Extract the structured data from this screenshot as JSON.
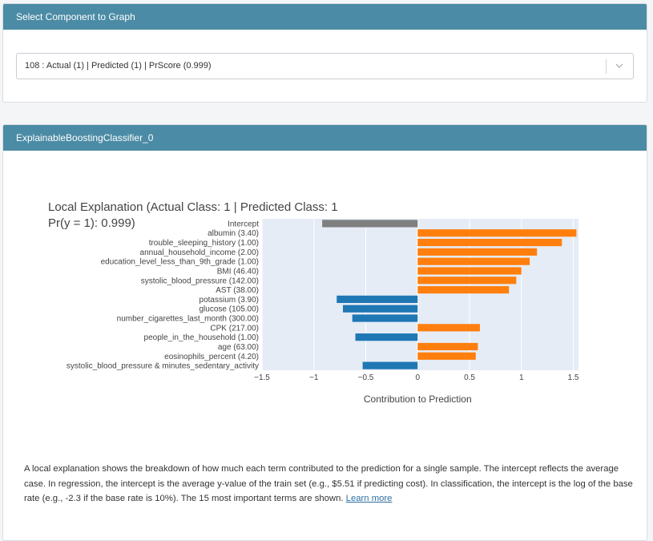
{
  "select_card": {
    "header": "Select Component to Graph",
    "selected_value": "108 : Actual (1) | Predicted (1) | PrScore (0.999)"
  },
  "explain_card": {
    "header": "ExplainableBoostingClassifier_0",
    "description": "A local explanation shows the breakdown of how much each term contributed to the prediction for a single sample. The intercept reflects the average case. In regression, the intercept is the average y-value of the train set (e.g., $5.51 if predicting cost). In classification, the intercept is the log of the base rate (e.g., -2.3 if the base rate is 10%). The 15 most important terms are shown.",
    "learn_more": "Learn more"
  },
  "chart_data": {
    "type": "bar",
    "orientation": "horizontal",
    "title_line1": "Local Explanation (Actual Class: 1 | Predicted Class: 1",
    "title_line2": "Pr(y = 1): 0.999)",
    "xlabel": "Contribution to Prediction",
    "ylabel": "",
    "xlim": [
      -1.5,
      1.55
    ],
    "xticks": [
      -1.5,
      -1,
      -0.5,
      0,
      0.5,
      1,
      1.5
    ],
    "xtick_labels": [
      "−1.5",
      "−1",
      "−0.5",
      "0",
      "0.5",
      "1",
      "1.5"
    ],
    "grid": true,
    "colors": {
      "intercept": "#7f7f7f",
      "positive": "#ff7f0e",
      "negative": "#1f77b4",
      "plot_bg": "#e5ecf6"
    },
    "categories": [
      "Intercept",
      "albumin (3.40)",
      "trouble_sleeping_history (1.00)",
      "annual_household_income (2.00)",
      "education_level_less_than_9th_grade (1.00)",
      "BMI (46.40)",
      "systolic_blood_pressure (142.00)",
      "AST (38.00)",
      "potassium (3.90)",
      "glucose (105.00)",
      "number_cigarettes_last_month (300.00)",
      "CPK (217.00)",
      "people_in_the_household (1.00)",
      "age (63.00)",
      "eosinophils_percent (4.20)",
      "systolic_blood_pressure & minutes_sedentary_activity"
    ],
    "values": [
      -0.92,
      1.53,
      1.39,
      1.15,
      1.08,
      1.0,
      0.95,
      0.88,
      -0.78,
      -0.72,
      -0.63,
      0.6,
      -0.6,
      0.58,
      0.56,
      -0.53
    ]
  }
}
